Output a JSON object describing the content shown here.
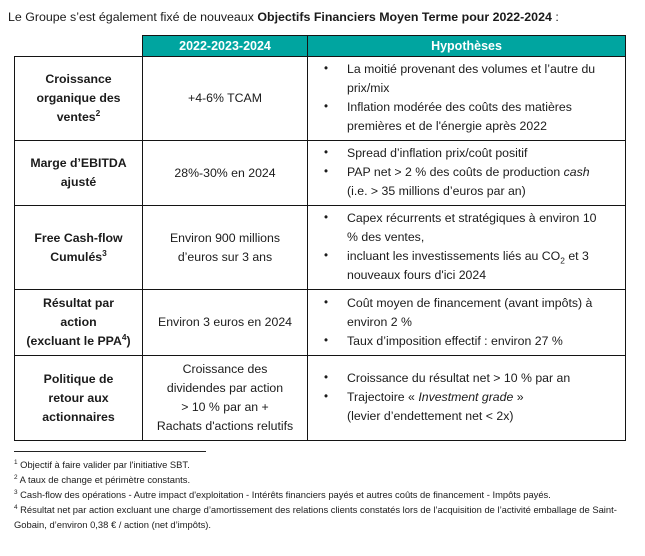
{
  "intro": {
    "prefix": "Le Groupe s’est également fixé de nouveaux ",
    "bold": "Objectifs Financiers Moyen Terme pour 2022-2024",
    "suffix": " :"
  },
  "colors": {
    "header_bg": "#00A5A0",
    "header_text": "#FFFFFF",
    "border": "#141414",
    "text": "#1B1B1B"
  },
  "bullet_glyph": "•",
  "table": {
    "header_period": "2022-2023-2024",
    "header_hypotheses": "Hypothèses",
    "rows": [
      {
        "label_lines": [
          "Croissance",
          "organique des",
          [
            {
              "t": "ventes"
            },
            {
              "t": "2",
              "sup": true
            }
          ]
        ],
        "target_lines": [
          "+4-6% TCAM"
        ],
        "bullets": [
          {
            "lines": [
              "La moitié provenant des volumes et l’autre du",
              "prix/mix"
            ]
          },
          {
            "lines": [
              "Inflation modérée des coûts des matières",
              "premières et de l'énergie après 2022"
            ]
          }
        ]
      },
      {
        "label_lines": [
          "Marge d’EBITDA",
          "ajusté"
        ],
        "target_lines": [
          "28%-30% en 2024"
        ],
        "bullets": [
          {
            "lines": [
              "Spread d’inflation prix/coût positif"
            ]
          },
          {
            "lines": [
              [
                {
                  "t": "PAP net > 2 % des coûts de production "
                },
                {
                  "t": "cash",
                  "i": true
                }
              ],
              "(i.e. > 35 millions d’euros par an)"
            ]
          }
        ]
      },
      {
        "label_lines": [
          "Free Cash-flow",
          [
            {
              "t": "Cumulés"
            },
            {
              "t": "3",
              "sup": true
            }
          ]
        ],
        "target_lines": [
          "Environ 900 millions",
          "d’euros sur 3 ans"
        ],
        "bullets": [
          {
            "lines": [
              "Capex récurrents et stratégiques à environ 10",
              "% des ventes,"
            ]
          },
          {
            "lines": [
              [
                {
                  "t": "incluant les investissements liés au CO"
                },
                {
                  "t": "2",
                  "sub": true
                },
                {
                  "t": " et 3"
                }
              ],
              "nouveaux fours d'ici 2024"
            ]
          }
        ]
      },
      {
        "label_lines": [
          "Résultat par",
          "action",
          [
            {
              "t": "(excluant le PPA"
            },
            {
              "t": "4",
              "sup": true
            },
            {
              "t": ")"
            }
          ]
        ],
        "target_lines": [
          "Environ 3 euros en 2024"
        ],
        "bullets": [
          {
            "lines": [
              "Coût moyen de financement (avant impôts) à",
              "environ 2 %"
            ]
          },
          {
            "lines": [
              "Taux d’imposition effectif : environ 27 %"
            ]
          }
        ]
      },
      {
        "label_lines": [
          "Politique de",
          "retour aux",
          "actionnaires"
        ],
        "target_lines": [
          "Croissance des",
          "dividendes par action",
          "> 10 % par an +",
          "Rachats d'actions relutifs"
        ],
        "bullets": [
          {
            "lines": [
              "Croissance du résultat net > 10 % par an"
            ]
          },
          {
            "lines": [
              [
                {
                  "t": "Trajectoire « "
                },
                {
                  "t": "Investment grade",
                  "i": true
                },
                {
                  "t": " »"
                }
              ],
              "(levier d’endettement net < 2x)"
            ]
          }
        ]
      }
    ]
  },
  "footnotes": [
    {
      "marker": "1",
      "text": "Objectif à faire valider par l'initiative SBT."
    },
    {
      "marker": "2",
      "text": "A taux de change et périmètre constants."
    },
    {
      "marker": "3",
      "text": "Cash-flow des opérations - Autre impact d'exploitation - Intérêts financiers payés et autres coûts de financement - Impôts payés."
    },
    {
      "marker": "4",
      "text": "Résultat net par action excluant une charge d’amortissement des relations clients constatés lors de l’acquisition de l’activité emballage de Saint-Gobain, d’environ 0,38 € / action (net d’impôts)."
    }
  ]
}
